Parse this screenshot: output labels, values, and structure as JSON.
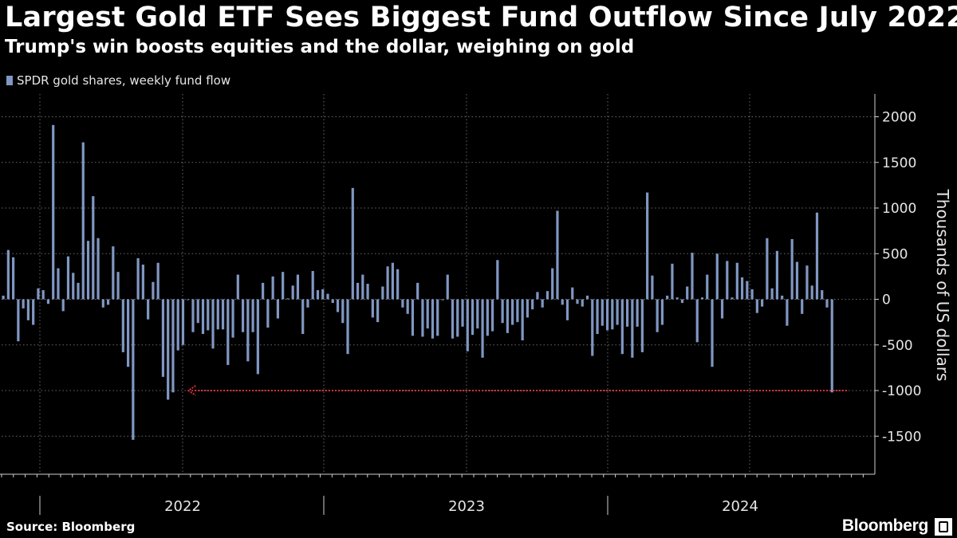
{
  "header": {
    "title": "Largest Gold ETF Sees Biggest Fund Outflow Since July 2022",
    "subtitle": "Trump's win boosts equities and the dollar, weighing on gold"
  },
  "footer": {
    "source": "Source: Bloomberg",
    "brand": "Bloomberg"
  },
  "colors": {
    "background": "#000000",
    "bar": "#8097c2",
    "grid": "#6a6a6a",
    "arrow": "#d6303a"
  },
  "chart_data": {
    "type": "bar",
    "title": "Largest Gold ETF Sees Biggest Fund Outflow Since July 2022",
    "subtitle": "Trump's win boosts equities and the dollar, weighing on gold",
    "xlabel": "",
    "ylabel": "Thousands of US dollars",
    "ylim": [
      -1900,
      2250
    ],
    "yticks": [
      2000,
      1500,
      1000,
      500,
      0,
      -500,
      -1000,
      -1500
    ],
    "ytick_labels": [
      "2000",
      "1500",
      "1000",
      "500",
      "0",
      "-500",
      "-1000",
      "-1500"
    ],
    "year_labels": [
      "2022",
      "2023",
      "2024"
    ],
    "legend": {
      "position": "top-left"
    },
    "grid": true,
    "series": [
      {
        "name": "SPDR gold shares, weekly fund flow",
        "values": [
          40,
          540,
          460,
          -460,
          -100,
          -230,
          -280,
          120,
          100,
          -50,
          1910,
          340,
          -130,
          470,
          290,
          180,
          1720,
          640,
          1130,
          670,
          -90,
          -60,
          580,
          300,
          -580,
          -740,
          -1540,
          450,
          380,
          -220,
          190,
          400,
          -850,
          -1100,
          -1020,
          -560,
          -500,
          0,
          -360,
          -260,
          -380,
          -340,
          -540,
          -330,
          -330,
          -720,
          -420,
          270,
          -360,
          -680,
          -360,
          -820,
          180,
          -310,
          250,
          -210,
          300,
          10,
          150,
          270,
          -380,
          -90,
          310,
          100,
          110,
          60,
          -40,
          -140,
          -260,
          -600,
          1220,
          180,
          270,
          170,
          -200,
          -250,
          140,
          360,
          400,
          330,
          -90,
          -160,
          -400,
          180,
          -410,
          -320,
          -430,
          -400,
          -10,
          270,
          -430,
          -410,
          -300,
          -570,
          -390,
          -320,
          -640,
          -400,
          -350,
          430,
          -260,
          -370,
          -280,
          -250,
          -450,
          -200,
          -110,
          80,
          -90,
          90,
          340,
          970,
          -60,
          -230,
          130,
          -50,
          -80,
          40,
          -620,
          -380,
          -290,
          -340,
          -330,
          -280,
          -600,
          -300,
          -640,
          -300,
          -580,
          1170,
          260,
          -360,
          -280,
          40,
          390,
          20,
          -40,
          140,
          510,
          -470,
          20,
          270,
          -740,
          500,
          -210,
          420,
          20,
          400,
          240,
          200,
          110,
          -150,
          -80,
          670,
          120,
          530,
          40,
          -290,
          660,
          410,
          -160,
          370,
          150,
          950,
          100,
          -90,
          -1020
        ]
      }
    ],
    "annotation": {
      "type": "arrow",
      "description_value": -1000,
      "from_index": 169,
      "to_index": 33
    }
  }
}
